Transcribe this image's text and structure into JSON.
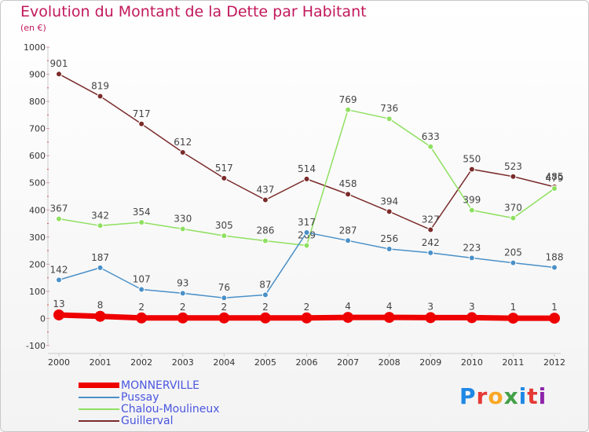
{
  "title": "Evolution du Montant de la Dette par Habitant",
  "subtitle": "(en €)",
  "logo": {
    "text": "Proxiti",
    "colors": [
      "#1e88e5",
      "#e53935",
      "#f9a825",
      "#43a047",
      "#1e88e5",
      "#e53935",
      "#8e24aa"
    ]
  },
  "chart_data": {
    "type": "line",
    "title": "Evolution du Montant de la Dette par Habitant",
    "subtitle": "(en €)",
    "x": [
      2000,
      2001,
      2002,
      2003,
      2004,
      2005,
      2006,
      2007,
      2008,
      2009,
      2010,
      2011,
      2012
    ],
    "ylim": [
      -100,
      1000
    ],
    "yticks": [
      -100,
      0,
      100,
      200,
      300,
      400,
      500,
      600,
      700,
      800,
      900,
      1000
    ],
    "grid": false,
    "legend_position": "bottom-left",
    "series": [
      {
        "name": "MONNERVILLE",
        "color": "#ee0000",
        "values": [
          13,
          8,
          2,
          2,
          2,
          2,
          2,
          4,
          4,
          3,
          3,
          1,
          1
        ]
      },
      {
        "name": "Pussay",
        "color": "#4a90c8",
        "values": [
          142,
          187,
          107,
          93,
          76,
          87,
          317,
          287,
          256,
          242,
          223,
          205,
          188
        ]
      },
      {
        "name": "Chalou-Moulineux",
        "color": "#8fe060",
        "values": [
          367,
          342,
          354,
          330,
          305,
          286,
          269,
          769,
          736,
          633,
          399,
          370,
          479
        ]
      },
      {
        "name": "Guillerval",
        "color": "#7b2b2b",
        "values": [
          901,
          819,
          717,
          612,
          517,
          437,
          514,
          458,
          394,
          327,
          550,
          523,
          485
        ]
      }
    ]
  }
}
